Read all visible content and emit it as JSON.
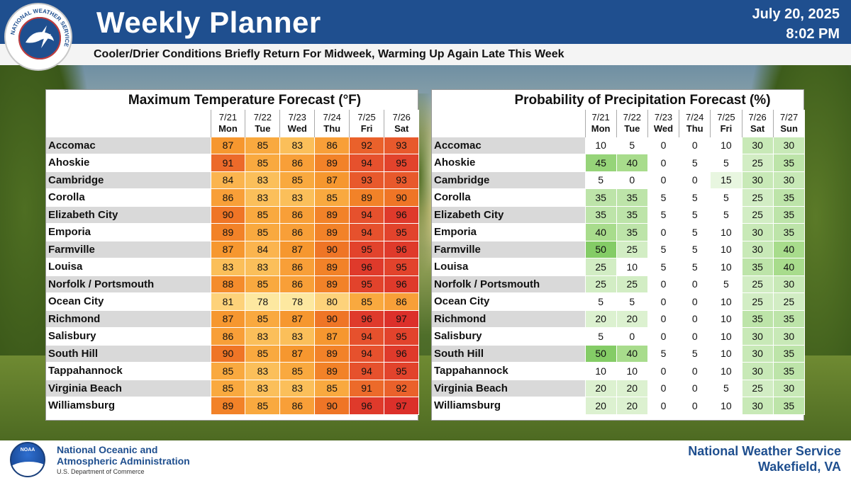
{
  "header": {
    "title": "Weekly Planner",
    "date": "July 20, 2025",
    "time": "8:02 PM",
    "subtitle": "Cooler/Drier Conditions Briefly Return For Midweek, Warming Up Again Late This Week",
    "logo_text": "NATIONAL WEATHER SERVICE"
  },
  "temperature_table": {
    "title": "Maximum Temperature Forecast (°F)",
    "columns": [
      {
        "date": "7/21",
        "day": "Mon"
      },
      {
        "date": "7/22",
        "day": "Tue"
      },
      {
        "date": "7/23",
        "day": "Wed"
      },
      {
        "date": "7/24",
        "day": "Thu"
      },
      {
        "date": "7/25",
        "day": "Fri"
      },
      {
        "date": "7/26",
        "day": "Sat"
      }
    ],
    "rows": [
      {
        "city": "Accomac",
        "values": [
          "87",
          "85",
          "83",
          "86",
          "92",
          "93"
        ]
      },
      {
        "city": "Ahoskie",
        "values": [
          "91",
          "85",
          "86",
          "89",
          "94",
          "95"
        ]
      },
      {
        "city": "Cambridge",
        "values": [
          "84",
          "83",
          "85",
          "87",
          "93",
          "93"
        ]
      },
      {
        "city": "Corolla",
        "values": [
          "86",
          "83",
          "83",
          "85",
          "89",
          "90"
        ]
      },
      {
        "city": "Elizabeth City",
        "values": [
          "90",
          "85",
          "86",
          "89",
          "94",
          "96"
        ]
      },
      {
        "city": "Emporia",
        "values": [
          "89",
          "85",
          "86",
          "89",
          "94",
          "95"
        ]
      },
      {
        "city": "Farmville",
        "values": [
          "87",
          "84",
          "87",
          "90",
          "95",
          "96"
        ]
      },
      {
        "city": "Louisa",
        "values": [
          "83",
          "83",
          "86",
          "89",
          "96",
          "95"
        ]
      },
      {
        "city": "Norfolk / Portsmouth",
        "values": [
          "88",
          "85",
          "86",
          "89",
          "95",
          "96"
        ]
      },
      {
        "city": "Ocean City",
        "values": [
          "81",
          "78",
          "78",
          "80",
          "85",
          "86"
        ]
      },
      {
        "city": "Richmond",
        "values": [
          "87",
          "85",
          "87",
          "90",
          "96",
          "97"
        ]
      },
      {
        "city": "Salisbury",
        "values": [
          "86",
          "83",
          "83",
          "87",
          "94",
          "95"
        ]
      },
      {
        "city": "South Hill",
        "values": [
          "90",
          "85",
          "87",
          "89",
          "94",
          "96"
        ]
      },
      {
        "city": "Tappahannock",
        "values": [
          "85",
          "83",
          "85",
          "89",
          "94",
          "95"
        ]
      },
      {
        "city": "Virginia Beach",
        "values": [
          "85",
          "83",
          "83",
          "85",
          "91",
          "92"
        ]
      },
      {
        "city": "Williamsburg",
        "values": [
          "89",
          "85",
          "86",
          "90",
          "96",
          "97"
        ]
      }
    ]
  },
  "precip_table": {
    "title": "Probability of Precipitation Forecast (%)",
    "columns": [
      {
        "date": "7/21",
        "day": "Mon"
      },
      {
        "date": "7/22",
        "day": "Tue"
      },
      {
        "date": "7/23",
        "day": "Wed"
      },
      {
        "date": "7/24",
        "day": "Thu"
      },
      {
        "date": "7/25",
        "day": "Fri"
      },
      {
        "date": "7/26",
        "day": "Sat"
      },
      {
        "date": "7/27",
        "day": "Sun"
      }
    ],
    "rows": [
      {
        "city": "Accomac",
        "values": [
          "10",
          "5",
          "0",
          "0",
          "10",
          "30",
          "30"
        ]
      },
      {
        "city": "Ahoskie",
        "values": [
          "45",
          "40",
          "0",
          "5",
          "5",
          "25",
          "35"
        ]
      },
      {
        "city": "Cambridge",
        "values": [
          "5",
          "0",
          "0",
          "0",
          "15",
          "30",
          "30"
        ]
      },
      {
        "city": "Corolla",
        "values": [
          "35",
          "35",
          "5",
          "5",
          "5",
          "25",
          "35"
        ]
      },
      {
        "city": "Elizabeth City",
        "values": [
          "35",
          "35",
          "5",
          "5",
          "5",
          "25",
          "35"
        ]
      },
      {
        "city": "Emporia",
        "values": [
          "40",
          "35",
          "0",
          "5",
          "10",
          "30",
          "35"
        ]
      },
      {
        "city": "Farmville",
        "values": [
          "50",
          "25",
          "5",
          "5",
          "10",
          "30",
          "40"
        ]
      },
      {
        "city": "Louisa",
        "values": [
          "25",
          "10",
          "5",
          "5",
          "10",
          "35",
          "40"
        ]
      },
      {
        "city": "Norfolk / Portsmouth",
        "values": [
          "25",
          "25",
          "0",
          "0",
          "5",
          "25",
          "30"
        ]
      },
      {
        "city": "Ocean City",
        "values": [
          "5",
          "5",
          "0",
          "0",
          "10",
          "25",
          "25"
        ]
      },
      {
        "city": "Richmond",
        "values": [
          "20",
          "20",
          "0",
          "0",
          "10",
          "35",
          "35"
        ]
      },
      {
        "city": "Salisbury",
        "values": [
          "5",
          "0",
          "0",
          "0",
          "10",
          "30",
          "30"
        ]
      },
      {
        "city": "South Hill",
        "values": [
          "50",
          "40",
          "5",
          "5",
          "10",
          "30",
          "35"
        ]
      },
      {
        "city": "Tappahannock",
        "values": [
          "10",
          "10",
          "0",
          "0",
          "10",
          "30",
          "35"
        ]
      },
      {
        "city": "Virginia Beach",
        "values": [
          "20",
          "20",
          "0",
          "0",
          "5",
          "25",
          "30"
        ]
      },
      {
        "city": "Williamsburg",
        "values": [
          "20",
          "20",
          "0",
          "0",
          "10",
          "30",
          "35"
        ]
      }
    ]
  },
  "footer": {
    "noaa_line1": "National Oceanic and",
    "noaa_line2": "Atmospheric Administration",
    "noaa_line3": "U.S. Department of Commerce",
    "noaa_logo_text": "NOAA",
    "nws_line1": "National Weather Service",
    "nws_line2": "Wakefield, VA"
  },
  "colors": {
    "header_blue": "#1f4f8f",
    "temp_scale": {
      "78": "#fde8a0",
      "80": "#fdd27a",
      "81": "#fdd27a",
      "83": "#fbbf5a",
      "84": "#fbb44e",
      "85": "#f9a93f",
      "86": "#f89f38",
      "87": "#f6972f",
      "88": "#f48c2c",
      "89": "#f28228",
      "90": "#ef7526",
      "91": "#ec6a2a",
      "92": "#ea612b",
      "93": "#e8592c",
      "94": "#e6512d",
      "95": "#e2432c",
      "96": "#df3a2b",
      "97": "#dc302a"
    },
    "pop_scale": {
      "0": "#ffffff",
      "5": "#ffffff",
      "10": "#ffffff",
      "15": "#e8f6e0",
      "20": "#dcf1d0",
      "25": "#d2edc4",
      "30": "#c8e9b7",
      "35": "#bde4a9",
      "40": "#a8dc8c",
      "45": "#96d479",
      "50": "#84cc66"
    }
  }
}
